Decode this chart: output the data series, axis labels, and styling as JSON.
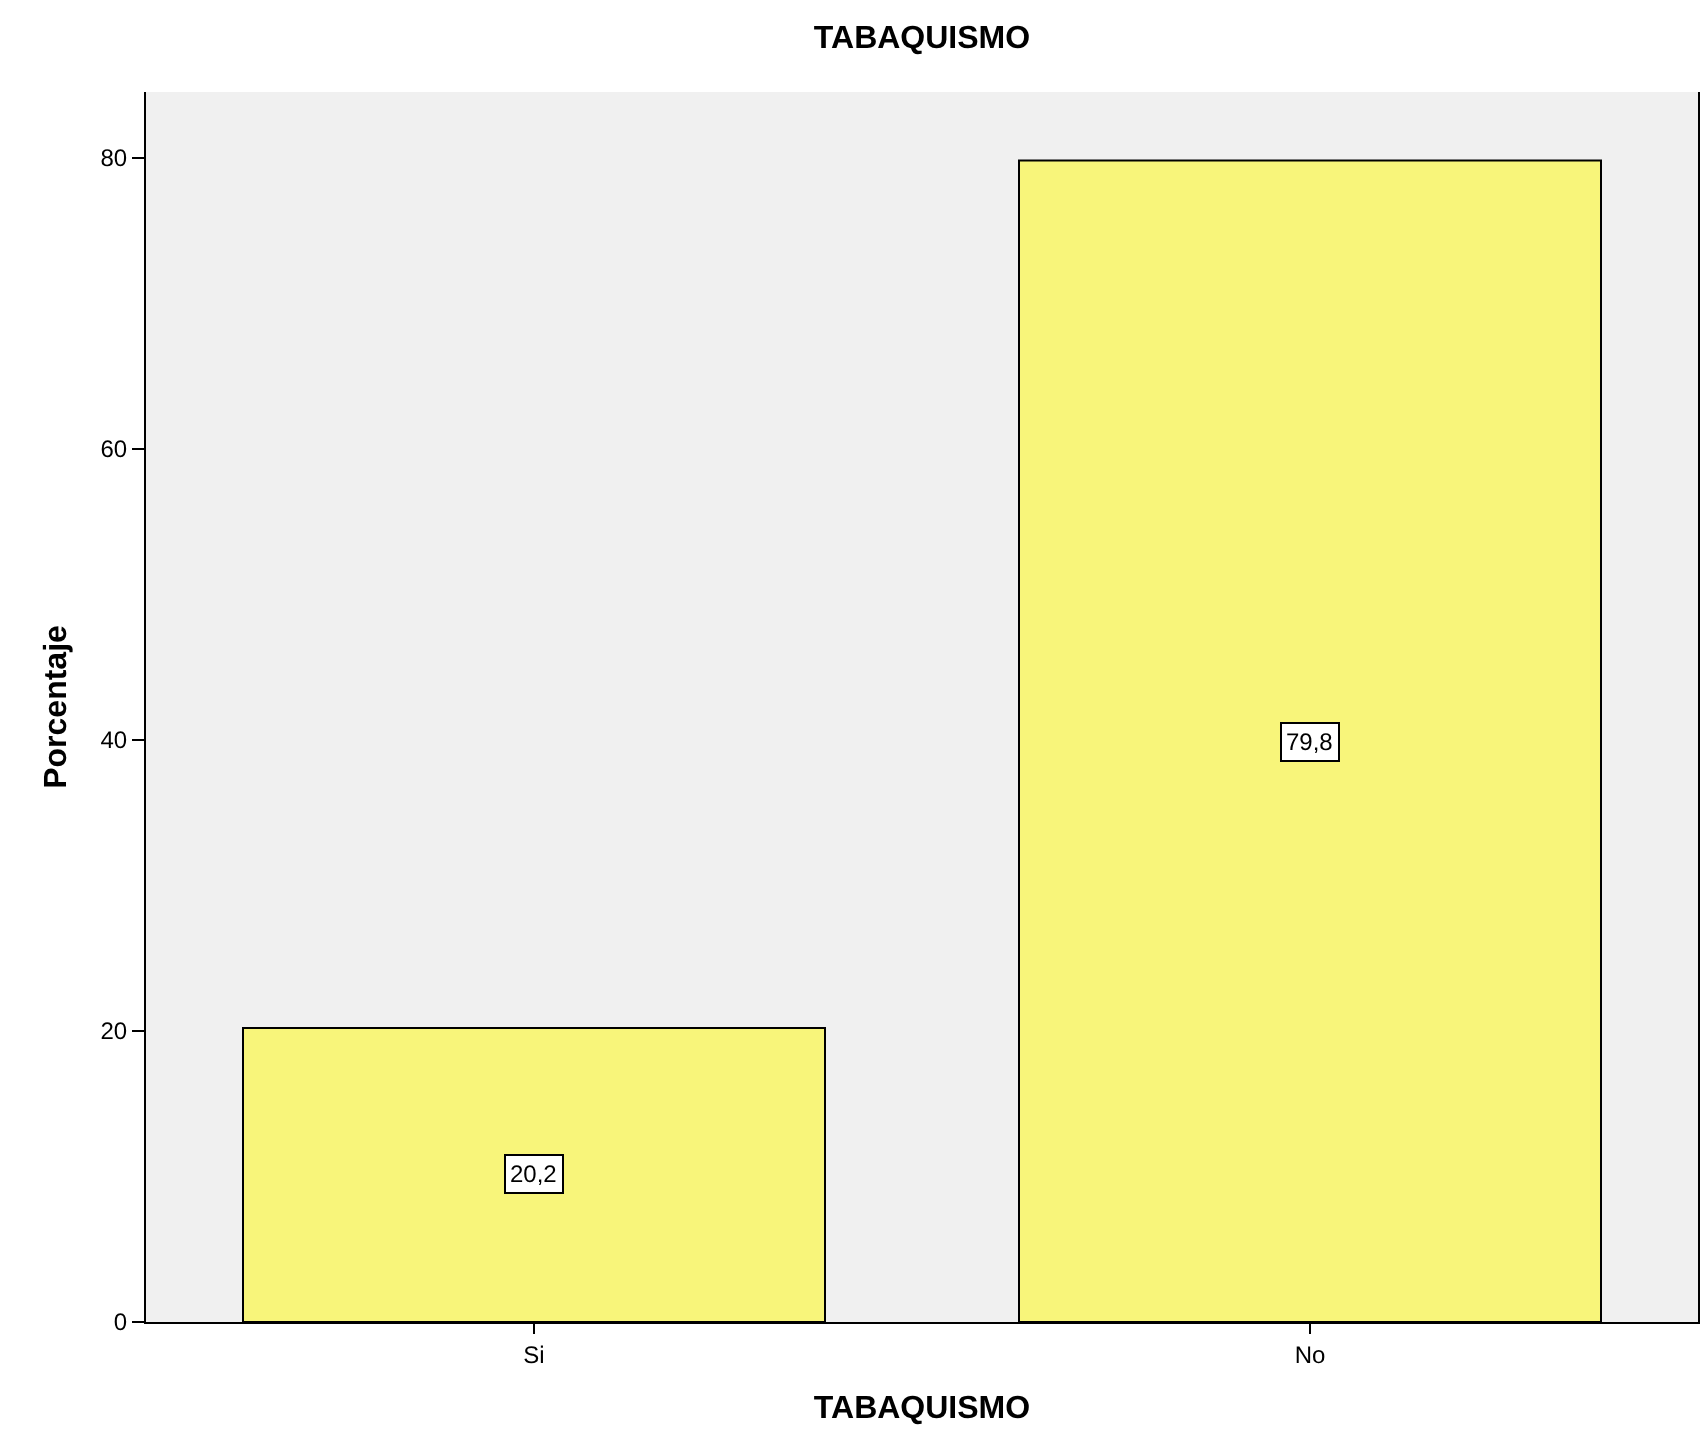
{
  "chart_data": {
    "type": "bar",
    "title": "TABAQUISMO",
    "xlabel": "TABAQUISMO",
    "ylabel": "Porcentaje",
    "categories": [
      "Si",
      "No"
    ],
    "series": [
      {
        "color": "#f8f57a",
        "values": [
          20.2,
          79.8
        ],
        "value_labels": [
          "20,2",
          "79,8"
        ]
      }
    ],
    "ylim": [
      0,
      84.5
    ],
    "yticks": [
      0,
      20,
      40,
      60,
      80
    ]
  }
}
